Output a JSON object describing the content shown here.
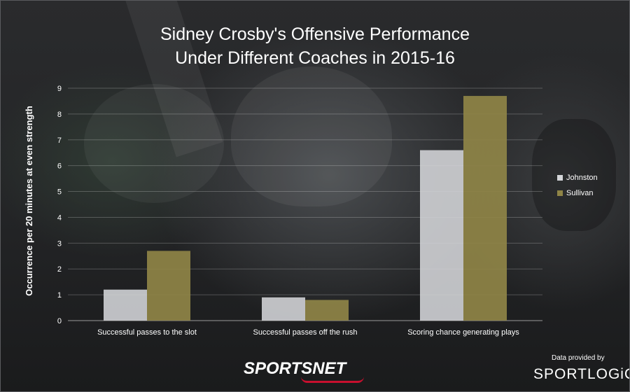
{
  "title": {
    "line1": "Sidney Crosby's Offensive Performance",
    "line2": "Under Different Coaches in 2015-16"
  },
  "chart_data": {
    "type": "bar",
    "title": "Sidney Crosby's Offensive Performance Under Different Coaches in 2015-16",
    "ylabel": "Occurrence per 20 minutes at even strength",
    "xlabel": "",
    "ylim": [
      0,
      9
    ],
    "yticks": [
      "0",
      "1",
      "2",
      "3",
      "4",
      "5",
      "6",
      "7",
      "8",
      "9"
    ],
    "grid": true,
    "legend_position": "right",
    "categories": [
      "Successful passes to the slot",
      "Successful passes off the rush",
      "Scoring chance generating plays"
    ],
    "series": [
      {
        "name": "Johnston",
        "color": "#d5d6da",
        "values": [
          1.2,
          0.9,
          6.6
        ]
      },
      {
        "name": "Sullivan",
        "color": "#8f8446",
        "values": [
          2.7,
          0.8,
          8.7
        ]
      }
    ]
  },
  "footer": {
    "logo": "SPORTSNET",
    "credit_small": "Data provided by",
    "credit_brand": "SPORTLOGiQ"
  }
}
